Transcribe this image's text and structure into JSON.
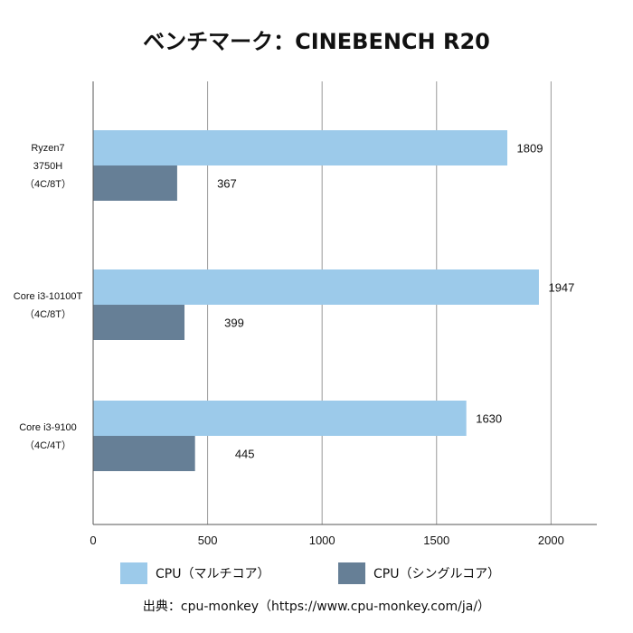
{
  "title": "ベンチマーク：CINEBENCH R20",
  "legend": {
    "multi": "CPU（マルチコア）",
    "single": "CPU（シングルコア）"
  },
  "source": "出典：cpu-monkey（https://www.cpu-monkey.com/ja/）",
  "colors": {
    "multi": "#9ccaea",
    "single": "#667f96",
    "grid": "#999999",
    "axis": "#555555"
  },
  "chart_data": {
    "type": "bar",
    "orientation": "horizontal",
    "title": "ベンチマーク：CINEBENCH R20",
    "categories": [
      [
        "Ryzen7",
        "3750H",
        "（4C/8T）"
      ],
      [
        "Core i3-10100T",
        "（4C/8T）"
      ],
      [
        "Core i3-9100",
        "（4C/4T）"
      ]
    ],
    "series": [
      {
        "name": "CPU（マルチコア）",
        "values": [
          1809,
          1947,
          1630
        ]
      },
      {
        "name": "CPU（シングルコア）",
        "values": [
          367,
          399,
          445
        ]
      }
    ],
    "xlim": [
      0,
      2200
    ],
    "xticks": [
      0,
      500,
      1000,
      1500,
      2000
    ],
    "grid": true,
    "legend_position": "bottom",
    "data_labels": true
  }
}
